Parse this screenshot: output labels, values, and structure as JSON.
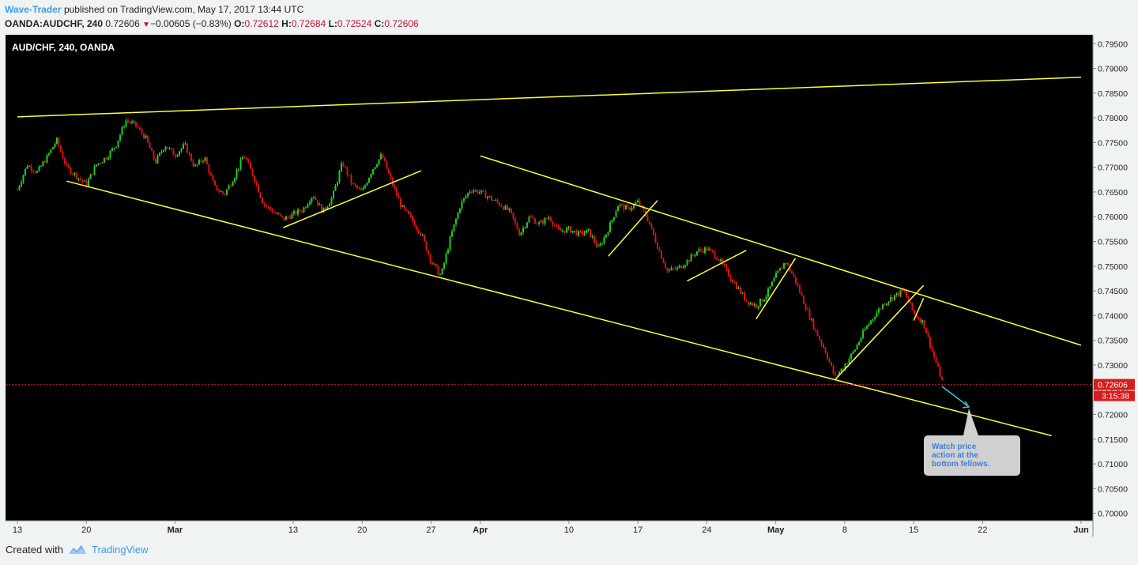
{
  "header": {
    "author": "Wave-Trader",
    "published": "published on TradingView.com, May 17, 2017 13:44 UTC",
    "symbol": "OANDA:AUDCHF, 240",
    "last": "0.72606",
    "change_arrow": "▼",
    "change": "−0.00605 (−0.83%)",
    "open_label": "O:",
    "open": "0.72612",
    "high_label": "H:",
    "high": "0.72684",
    "low_label": "L:",
    "low": "0.72524",
    "close_label": "C:",
    "close": "0.72606"
  },
  "chart_data": {
    "type": "candlestick",
    "title": "AUD/CHF, 240, OANDA",
    "timeframe": "240",
    "x_tick_labels": [
      "13",
      "20",
      "Mar",
      "13",
      "20",
      "27",
      "Apr",
      "10",
      "17",
      "24",
      "May",
      "8",
      "15",
      "22",
      "Jun"
    ],
    "y_tick_labels": [
      "0.79500",
      "0.79000",
      "0.78500",
      "0.78000",
      "0.77500",
      "0.77000",
      "0.76500",
      "0.76000",
      "0.75500",
      "0.75000",
      "0.74500",
      "0.74000",
      "0.73500",
      "0.73000",
      "0.72500",
      "0.72000",
      "0.71500",
      "0.71000",
      "0.70500",
      "0.70000"
    ],
    "ylim": [
      0.6985,
      0.7968
    ],
    "price_series": [
      {
        "date": "2017-02-13",
        "price": 0.7655
      },
      {
        "date": "2017-02-14",
        "price": 0.7705
      },
      {
        "date": "2017-02-15",
        "price": 0.769
      },
      {
        "date": "2017-02-16",
        "price": 0.772
      },
      {
        "date": "2017-02-17",
        "price": 0.7755
      },
      {
        "date": "2017-02-18",
        "price": 0.77
      },
      {
        "date": "2017-02-20",
        "price": 0.7665
      },
      {
        "date": "2017-02-21",
        "price": 0.7705
      },
      {
        "date": "2017-02-22",
        "price": 0.772
      },
      {
        "date": "2017-02-23",
        "price": 0.7745
      },
      {
        "date": "2017-02-24",
        "price": 0.7795
      },
      {
        "date": "2017-02-25",
        "price": 0.7785
      },
      {
        "date": "2017-02-26",
        "price": 0.776
      },
      {
        "date": "2017-02-27",
        "price": 0.771
      },
      {
        "date": "2017-02-28",
        "price": 0.7745
      },
      {
        "date": "2017-03-01",
        "price": 0.7725
      },
      {
        "date": "2017-03-02",
        "price": 0.7745
      },
      {
        "date": "2017-03-03",
        "price": 0.77
      },
      {
        "date": "2017-03-04",
        "price": 0.772
      },
      {
        "date": "2017-03-05",
        "price": 0.766
      },
      {
        "date": "2017-03-06",
        "price": 0.7645
      },
      {
        "date": "2017-03-07",
        "price": 0.768
      },
      {
        "date": "2017-03-08",
        "price": 0.7725
      },
      {
        "date": "2017-03-09",
        "price": 0.768
      },
      {
        "date": "2017-03-10",
        "price": 0.7625
      },
      {
        "date": "2017-03-12",
        "price": 0.7595
      },
      {
        "date": "2017-03-13",
        "price": 0.7605
      },
      {
        "date": "2017-03-14",
        "price": 0.7615
      },
      {
        "date": "2017-03-15",
        "price": 0.7645
      },
      {
        "date": "2017-03-16",
        "price": 0.761
      },
      {
        "date": "2017-03-17",
        "price": 0.764
      },
      {
        "date": "2017-03-18",
        "price": 0.771
      },
      {
        "date": "2017-03-19",
        "price": 0.7665
      },
      {
        "date": "2017-03-20",
        "price": 0.765
      },
      {
        "date": "2017-03-21",
        "price": 0.7695
      },
      {
        "date": "2017-03-22",
        "price": 0.7725
      },
      {
        "date": "2017-03-23",
        "price": 0.767
      },
      {
        "date": "2017-03-24",
        "price": 0.762
      },
      {
        "date": "2017-03-25",
        "price": 0.7595
      },
      {
        "date": "2017-03-26",
        "price": 0.7565
      },
      {
        "date": "2017-03-27",
        "price": 0.751
      },
      {
        "date": "2017-03-28",
        "price": 0.748
      },
      {
        "date": "2017-03-29",
        "price": 0.756
      },
      {
        "date": "2017-03-30",
        "price": 0.7625
      },
      {
        "date": "2017-03-31",
        "price": 0.7655
      },
      {
        "date": "2017-04-01",
        "price": 0.765
      },
      {
        "date": "2017-04-03",
        "price": 0.7625
      },
      {
        "date": "2017-04-04",
        "price": 0.761
      },
      {
        "date": "2017-04-05",
        "price": 0.7565
      },
      {
        "date": "2017-04-06",
        "price": 0.76
      },
      {
        "date": "2017-04-07",
        "price": 0.7585
      },
      {
        "date": "2017-04-08",
        "price": 0.76
      },
      {
        "date": "2017-04-09",
        "price": 0.757
      },
      {
        "date": "2017-04-10",
        "price": 0.7575
      },
      {
        "date": "2017-04-11",
        "price": 0.7565
      },
      {
        "date": "2017-04-12",
        "price": 0.757
      },
      {
        "date": "2017-04-13",
        "price": 0.7535
      },
      {
        "date": "2017-04-14",
        "price": 0.7575
      },
      {
        "date": "2017-04-15",
        "price": 0.7625
      },
      {
        "date": "2017-04-16",
        "price": 0.7615
      },
      {
        "date": "2017-04-17",
        "price": 0.763
      },
      {
        "date": "2017-04-18",
        "price": 0.7595
      },
      {
        "date": "2017-04-19",
        "price": 0.754
      },
      {
        "date": "2017-04-20",
        "price": 0.749
      },
      {
        "date": "2017-04-21",
        "price": 0.7495
      },
      {
        "date": "2017-04-22",
        "price": 0.751
      },
      {
        "date": "2017-04-23",
        "price": 0.753
      },
      {
        "date": "2017-04-24",
        "price": 0.7535
      },
      {
        "date": "2017-04-25",
        "price": 0.752
      },
      {
        "date": "2017-04-26",
        "price": 0.749
      },
      {
        "date": "2017-04-27",
        "price": 0.746
      },
      {
        "date": "2017-04-28",
        "price": 0.743
      },
      {
        "date": "2017-04-29",
        "price": 0.742
      },
      {
        "date": "2017-04-30",
        "price": 0.744
      },
      {
        "date": "2017-05-01",
        "price": 0.748
      },
      {
        "date": "2017-05-02",
        "price": 0.751
      },
      {
        "date": "2017-05-03",
        "price": 0.747
      },
      {
        "date": "2017-05-04",
        "price": 0.742
      },
      {
        "date": "2017-05-05",
        "price": 0.737
      },
      {
        "date": "2017-05-06",
        "price": 0.733
      },
      {
        "date": "2017-05-07",
        "price": 0.7275
      },
      {
        "date": "2017-05-08",
        "price": 0.73
      },
      {
        "date": "2017-05-09",
        "price": 0.733
      },
      {
        "date": "2017-05-10",
        "price": 0.737
      },
      {
        "date": "2017-05-11",
        "price": 0.74
      },
      {
        "date": "2017-05-12",
        "price": 0.7425
      },
      {
        "date": "2017-05-13",
        "price": 0.744
      },
      {
        "date": "2017-05-14",
        "price": 0.745
      },
      {
        "date": "2017-05-15",
        "price": 0.7405
      },
      {
        "date": "2017-05-16",
        "price": 0.7385
      },
      {
        "date": "2017-05-17",
        "price": 0.732
      },
      {
        "date": "2017-05-18",
        "price": 0.7261
      }
    ],
    "trendlines": [
      {
        "role": "upper resistance",
        "from": {
          "date": "2017-02-13",
          "price": 0.7802
        },
        "to": {
          "date": "2017-06-01",
          "price": 0.7882
        }
      },
      {
        "role": "lower channel",
        "from": {
          "date": "2017-02-18",
          "price": 0.7672
        },
        "to": {
          "date": "2017-05-29",
          "price": 0.7157
        }
      },
      {
        "role": "upper channel",
        "from": {
          "date": "2017-04-01",
          "price": 0.7723
        },
        "to": {
          "date": "2017-06-01",
          "price": 0.734
        }
      },
      {
        "role": "support",
        "from": {
          "date": "2017-03-12",
          "price": 0.7578
        },
        "to": {
          "date": "2017-03-26",
          "price": 0.7693
        }
      },
      {
        "role": "support",
        "from": {
          "date": "2017-04-14",
          "price": 0.752
        },
        "to": {
          "date": "2017-04-19",
          "price": 0.7633
        }
      },
      {
        "role": "support",
        "from": {
          "date": "2017-04-22",
          "price": 0.747
        },
        "to": {
          "date": "2017-04-28",
          "price": 0.7532
        }
      },
      {
        "role": "support",
        "from": {
          "date": "2017-04-29",
          "price": 0.7393
        },
        "to": {
          "date": "2017-05-03",
          "price": 0.7516
        }
      },
      {
        "role": "support",
        "from": {
          "date": "2017-05-07",
          "price": 0.727
        },
        "to": {
          "date": "2017-05-16",
          "price": 0.7461
        }
      },
      {
        "role": "support",
        "from": {
          "date": "2017-05-15",
          "price": 0.739
        },
        "to": {
          "date": "2017-05-16",
          "price": 0.7435
        }
      }
    ],
    "last_price_line": 0.72606,
    "last_price_label": "0.72606",
    "countdown_label": "3:15:38",
    "annotation": "Watch price action at the bottom fellows.",
    "colors": {
      "background": "#000000",
      "up": "#22cc22",
      "down": "#dd1111",
      "trendline": "#ffff33",
      "price_line": "#c8102e",
      "arrow": "#33ccdd",
      "annotation_text": "#3d7fd8"
    }
  },
  "annotation": {
    "line1": "Watch price",
    "line2": "action at the",
    "line3": "bottom fellows."
  },
  "footer": {
    "created_with": "Created with",
    "brand": "TradingView"
  }
}
